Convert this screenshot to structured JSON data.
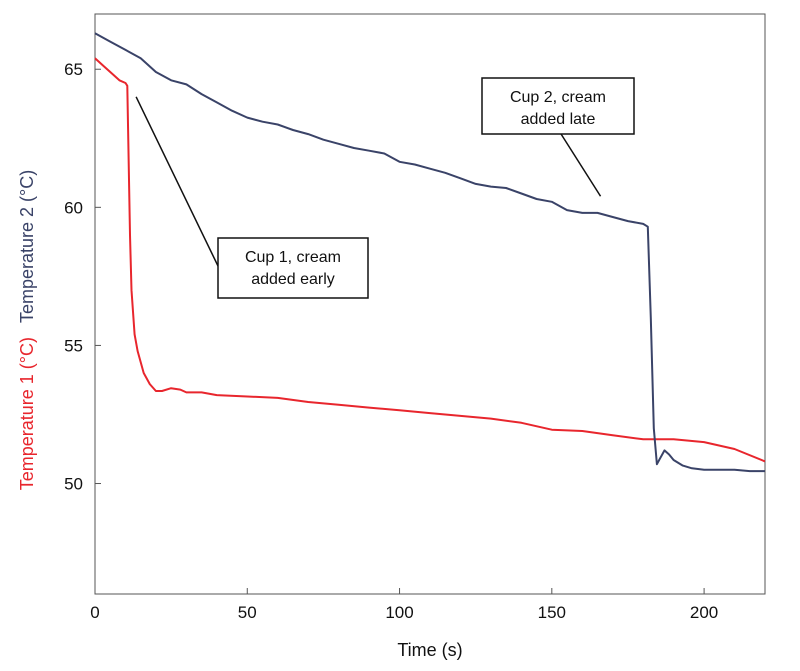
{
  "chart_data": {
    "type": "line",
    "xlabel": "Time (s)",
    "ylabel_parts": [
      {
        "text": "Temperature 1 (°C)",
        "color": "#e8262d"
      },
      {
        "text": "Temperature 2 (°C)",
        "color": "#3a4368"
      }
    ],
    "xlim": [
      0,
      220
    ],
    "ylim": [
      46,
      67
    ],
    "x_ticks": [
      0,
      50,
      100,
      150,
      200
    ],
    "y_ticks": [
      50,
      55,
      60,
      65
    ],
    "grid": false,
    "series": [
      {
        "name": "Cup 1, cream added early",
        "color": "#e8262d",
        "x": [
          0,
          3,
          6,
          8,
          10,
          10.6,
          11,
          11.5,
          12,
          13,
          14,
          16,
          18,
          20,
          22,
          25,
          28,
          30,
          35,
          40,
          50,
          60,
          70,
          80,
          90,
          100,
          110,
          120,
          130,
          140,
          150,
          160,
          170,
          180,
          190,
          200,
          210,
          220
        ],
        "y": [
          65.4,
          65.1,
          64.8,
          64.6,
          64.5,
          64.4,
          62,
          59,
          57,
          55.4,
          54.8,
          54,
          53.6,
          53.35,
          53.35,
          53.45,
          53.4,
          53.3,
          53.3,
          53.2,
          53.15,
          53.1,
          52.95,
          52.85,
          52.75,
          52.65,
          52.55,
          52.45,
          52.35,
          52.2,
          51.95,
          51.9,
          51.75,
          51.6,
          51.6,
          51.5,
          51.25,
          50.8
        ]
      },
      {
        "name": "Cup 2, cream added late",
        "color": "#3a4368",
        "x": [
          0,
          5,
          10,
          15,
          20,
          25,
          30,
          35,
          40,
          45,
          50,
          55,
          60,
          65,
          70,
          75,
          80,
          85,
          90,
          95,
          100,
          105,
          110,
          115,
          120,
          125,
          130,
          135,
          140,
          145,
          150,
          155,
          160,
          165,
          170,
          175,
          180,
          181.5,
          182.5,
          183.5,
          184.5,
          185.5,
          187,
          188.5,
          190,
          193,
          196,
          200,
          205,
          210,
          215,
          220
        ],
        "y": [
          66.3,
          66,
          65.7,
          65.4,
          64.9,
          64.6,
          64.45,
          64.1,
          63.8,
          63.5,
          63.25,
          63.1,
          63.0,
          62.8,
          62.65,
          62.45,
          62.3,
          62.15,
          62.05,
          61.95,
          61.65,
          61.55,
          61.4,
          61.25,
          61.05,
          60.85,
          60.75,
          60.7,
          60.5,
          60.3,
          60.2,
          59.9,
          59.8,
          59.8,
          59.65,
          59.5,
          59.4,
          59.3,
          56,
          52,
          50.7,
          50.9,
          51.2,
          51.05,
          50.85,
          50.65,
          50.55,
          50.5,
          50.5,
          50.5,
          50.45,
          50.45
        ]
      }
    ],
    "annotations": [
      {
        "lines": [
          "Cup 1, cream",
          "added early"
        ],
        "target_series": 0,
        "target_x": 13.5,
        "target_y": 64.0
      },
      {
        "lines": [
          "Cup 2, cream",
          "added late"
        ],
        "target_series": 1,
        "target_x": 166,
        "target_y": 60.4
      }
    ]
  }
}
